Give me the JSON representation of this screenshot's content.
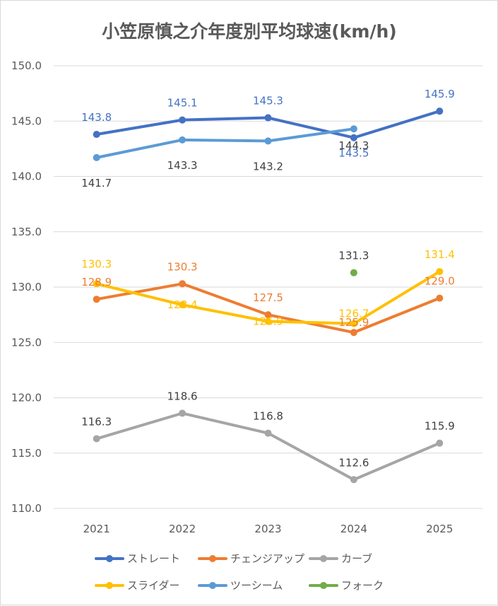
{
  "chart_data": {
    "type": "line",
    "title": "小笠原慎之介年度別平均球速(km/h)",
    "categories": [
      "2021",
      "2022",
      "2023",
      "2024",
      "2025"
    ],
    "ylim": [
      110.0,
      150.0
    ],
    "yticks": [
      "110.0",
      "115.0",
      "120.0",
      "125.0",
      "130.0",
      "135.0",
      "140.0",
      "145.0",
      "150.0"
    ],
    "grid": true,
    "legend_position": "bottom",
    "series": [
      {
        "name": "ストレート",
        "color": "#4472C4",
        "values": [
          143.8,
          145.1,
          145.3,
          143.5,
          145.9
        ],
        "labels": [
          "143.8",
          "145.1",
          "145.3",
          "143.5",
          "145.9"
        ]
      },
      {
        "name": "チェンジアップ",
        "color": "#ED7D31",
        "values": [
          128.9,
          130.3,
          127.5,
          125.9,
          129.0
        ],
        "labels": [
          "128.9",
          "130.3",
          "127.5",
          "125.9",
          "129.0"
        ]
      },
      {
        "name": "カーブ",
        "color": "#A5A5A5",
        "values": [
          116.3,
          118.6,
          116.8,
          112.6,
          115.9
        ],
        "labels": [
          "116.3",
          "118.6",
          "116.8",
          "112.6",
          "115.9"
        ]
      },
      {
        "name": "スライダー",
        "color": "#FFC000",
        "values": [
          130.3,
          128.4,
          126.9,
          126.7,
          131.4
        ],
        "labels": [
          "130.3",
          "128.4",
          "126.9",
          "126.7",
          "131.4"
        ]
      },
      {
        "name": "ツーシーム",
        "color": "#5B9BD5",
        "values": [
          141.7,
          143.3,
          143.2,
          144.3,
          null
        ],
        "labels": [
          "141.7",
          "143.3",
          "143.2",
          "144.3",
          null
        ]
      },
      {
        "name": "フォーク",
        "color": "#70AD47",
        "values": [
          null,
          null,
          null,
          131.3,
          null
        ],
        "labels": [
          null,
          null,
          null,
          "131.3",
          null
        ]
      }
    ]
  }
}
